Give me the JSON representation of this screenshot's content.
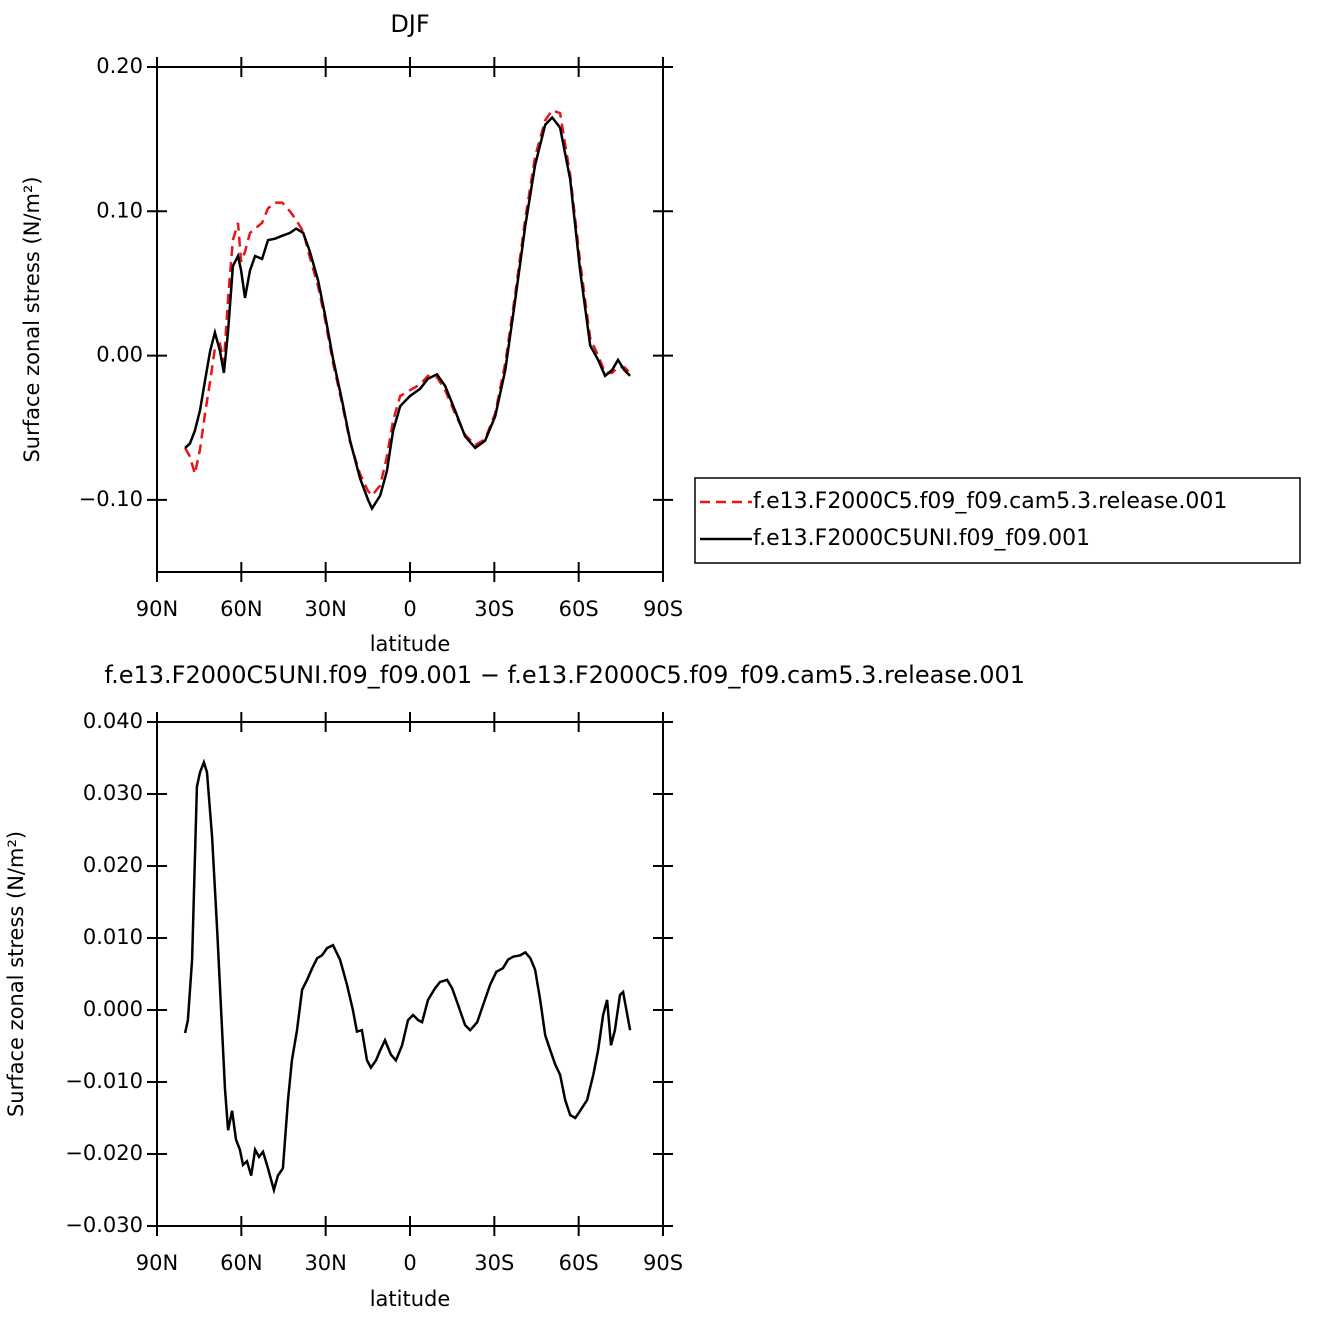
{
  "chart_data": [
    {
      "type": "line",
      "title": "DJF",
      "xlabel": "latitude",
      "ylabel": "Surface zonal stress (N/m²)",
      "xlim": [
        90,
        -90
      ],
      "xticks": [
        {
          "value": 90,
          "label": "90N"
        },
        {
          "value": 60,
          "label": "60N"
        },
        {
          "value": 30,
          "label": "30N"
        },
        0,
        {
          "value": -30,
          "label": "30S"
        },
        {
          "value": -60,
          "label": "60S"
        },
        {
          "value": -90,
          "label": "90S"
        }
      ],
      "ylim": [
        -0.15,
        0.2
      ],
      "yticks": [
        {
          "value": 0.2,
          "label": "0.20"
        },
        {
          "value": 0.1,
          "label": "0.10"
        },
        {
          "value": 0,
          "label": "0.00"
        },
        {
          "value": -0.1,
          "label": "−0.10"
        }
      ],
      "legend": "right",
      "x": [
        80,
        78.3,
        76.5,
        74.7,
        72.9,
        71.1,
        69.4,
        67.6,
        66.2,
        64.7,
        63,
        61.2,
        60.1,
        58.7,
        56.9,
        55.1,
        52.6,
        50.5,
        48,
        45.5,
        42.7,
        40.5,
        38,
        35.6,
        32.7,
        30.2,
        27.4,
        24.2,
        21.3,
        17.8,
        14.9,
        13.5,
        10.6,
        8.2,
        6,
        3.5,
        0,
        -3.6,
        -6.4,
        -9.6,
        -12.5,
        -16,
        -19.6,
        -23.2,
        -26.7,
        -30.3,
        -33.9,
        -37.4,
        -41,
        -44.5,
        -48.1,
        -50.6,
        -53.4,
        -57,
        -60.5,
        -64.1,
        -66.9,
        -69.4,
        -71.9,
        -74,
        -76.2,
        -78.3
      ],
      "series": [
        {
          "name": "f.e13.F2000C5.f09_f09.cam5.3.release.001",
          "color": "#e8141a",
          "dash": "dashed",
          "values": [
            -0.064,
            -0.07,
            -0.082,
            -0.065,
            -0.04,
            -0.018,
            0.005,
            0.008,
            -0.005,
            0.04,
            0.08,
            0.092,
            0.065,
            0.072,
            0.085,
            0.088,
            0.092,
            0.102,
            0.106,
            0.106,
            0.1,
            0.094,
            0.086,
            0.068,
            0.048,
            0.025,
            -0.005,
            -0.033,
            -0.06,
            -0.082,
            -0.094,
            -0.097,
            -0.09,
            -0.07,
            -0.045,
            -0.028,
            -0.024,
            -0.02,
            -0.014,
            -0.015,
            -0.024,
            -0.04,
            -0.055,
            -0.062,
            -0.058,
            -0.04,
            -0.005,
            0.042,
            0.095,
            0.138,
            0.163,
            0.17,
            0.168,
            0.125,
            0.065,
            0.012,
            0.0,
            -0.012,
            -0.012,
            -0.008,
            -0.008,
            -0.012
          ]
        },
        {
          "name": "f.e13.F2000C5UNI.f09_f09.001",
          "color": "#000000",
          "dash": "solid",
          "values": [
            -0.064,
            -0.061,
            -0.052,
            -0.038,
            -0.017,
            0.003,
            0.016,
            0.003,
            -0.012,
            0.017,
            0.062,
            0.069,
            0.059,
            0.04,
            0.059,
            0.069,
            0.067,
            0.08,
            0.081,
            0.083,
            0.085,
            0.088,
            0.085,
            0.072,
            0.052,
            0.028,
            -0.002,
            -0.031,
            -0.059,
            -0.085,
            -0.1,
            -0.106,
            -0.097,
            -0.08,
            -0.052,
            -0.035,
            -0.028,
            -0.023,
            -0.016,
            -0.013,
            -0.021,
            -0.038,
            -0.056,
            -0.064,
            -0.059,
            -0.042,
            -0.01,
            0.038,
            0.09,
            0.132,
            0.16,
            0.165,
            0.158,
            0.122,
            0.059,
            0.007,
            -0.003,
            -0.014,
            -0.01,
            -0.003,
            -0.01,
            -0.014
          ]
        }
      ]
    },
    {
      "type": "line",
      "title": "f.e13.F2000C5UNI.f09_f09.001 − f.e13.F2000C5.f09_f09.cam5.3.release.001",
      "xlabel": "latitude",
      "ylabel": "Surface zonal stress (N/m²)",
      "xlim": [
        90,
        -90
      ],
      "xticks": [
        {
          "value": 90,
          "label": "90N"
        },
        {
          "value": 60,
          "label": "60N"
        },
        {
          "value": 30,
          "label": "30N"
        },
        0,
        {
          "value": -30,
          "label": "30S"
        },
        {
          "value": -60,
          "label": "60S"
        },
        {
          "value": -90,
          "label": "90S"
        }
      ],
      "ylim": [
        -0.03,
        0.04
      ],
      "yticks": [
        {
          "value": 0.04,
          "label": "0.040"
        },
        {
          "value": 0.03,
          "label": "0.030"
        },
        {
          "value": 0.02,
          "label": "0.020"
        },
        {
          "value": 0.01,
          "label": "0.010"
        },
        {
          "value": 0,
          "label": "0.000"
        },
        {
          "value": -0.01,
          "label": "−0.010"
        },
        {
          "value": -0.02,
          "label": "−0.020"
        },
        {
          "value": -0.03,
          "label": "−0.030"
        }
      ],
      "x": [
        80,
        79,
        77.5,
        75.8,
        74.7,
        73.3,
        72.2,
        70.4,
        68.6,
        67.2,
        65.8,
        64.7,
        63.3,
        61.9,
        60.5,
        59.4,
        58,
        56.5,
        55.1,
        53.7,
        52.3,
        50.5,
        48.4,
        47,
        45.2,
        43.4,
        42,
        40.2,
        38.4,
        36.6,
        34.8,
        33,
        31.3,
        29.5,
        27.4,
        24.9,
        22.4,
        20.3,
        18.9,
        17.1,
        15.3,
        13.9,
        12.1,
        10.6,
        8.9,
        6.8,
        5,
        2.8,
        0.7,
        -1.1,
        -2.9,
        -4.3,
        -6.4,
        -8.9,
        -10.7,
        -13.2,
        -15,
        -17.1,
        -19.6,
        -21.4,
        -23.9,
        -26,
        -28.5,
        -30.7,
        -33.1,
        -34.9,
        -36.7,
        -39.2,
        -41,
        -42.8,
        -44.5,
        -46.3,
        -48.1,
        -49.9,
        -51.7,
        -53.4,
        -55.2,
        -57,
        -58.8,
        -60.5,
        -63,
        -65.2,
        -66.9,
        -68.7,
        -70.1,
        -71.5,
        -72.9,
        -74.7,
        -75.8,
        -78.3
      ],
      "series": [
        {
          "color": "#000000",
          "dash": "solid",
          "values": [
            -0.0032,
            -0.0014,
            0.007,
            0.031,
            0.033,
            0.0344,
            0.033,
            0.024,
            0.011,
            0.0,
            -0.011,
            -0.0167,
            -0.014,
            -0.018,
            -0.0194,
            -0.0215,
            -0.021,
            -0.023,
            -0.0194,
            -0.0204,
            -0.0197,
            -0.022,
            -0.025,
            -0.023,
            -0.022,
            -0.0125,
            -0.007,
            -0.0028,
            0.0028,
            0.0042,
            0.0058,
            0.0072,
            0.0076,
            0.0086,
            0.009,
            0.007,
            0.0035,
            0,
            -0.003,
            -0.0028,
            -0.007,
            -0.008,
            -0.007,
            -0.0056,
            -0.0042,
            -0.0062,
            -0.007,
            -0.0049,
            -0.0014,
            -0.0007,
            -0.0014,
            -0.0017,
            0.0014,
            0.003,
            0.0039,
            0.0042,
            0.003,
            0.0007,
            -0.0021,
            -0.0028,
            -0.0017,
            0.0007,
            0.0035,
            0.0053,
            0.0058,
            0.007,
            0.0074,
            0.0076,
            0.008,
            0.0072,
            0.0056,
            0.0014,
            -0.0035,
            -0.0056,
            -0.0076,
            -0.009,
            -0.0125,
            -0.0146,
            -0.015,
            -0.014,
            -0.0125,
            -0.009,
            -0.0056,
            -0.0007,
            0.0014,
            -0.0049,
            -0.0028,
            0.0021,
            0.0025,
            -0.0028
          ]
        }
      ]
    }
  ]
}
